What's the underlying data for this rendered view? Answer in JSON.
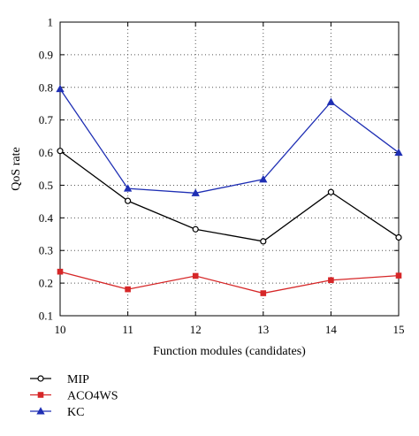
{
  "chart_data": {
    "type": "line",
    "xlabel": "Function modules (candidates)",
    "ylabel": "QoS rate",
    "x": [
      10,
      11,
      12,
      13,
      14,
      15
    ],
    "xlim": [
      10,
      15
    ],
    "ylim": [
      0.1,
      1
    ],
    "xticks": [
      "10",
      "11",
      "12",
      "13",
      "14",
      "15"
    ],
    "yticks": [
      "0.1",
      "0.2",
      "0.3",
      "0.4",
      "0.5",
      "0.6",
      "0.7",
      "0.8",
      "0.9",
      "1"
    ],
    "grid": true,
    "legend_position": "bottom-left, below plot",
    "series": [
      {
        "name": "MIP",
        "values": [
          0.605,
          0.452,
          0.365,
          0.328,
          0.479,
          0.34
        ],
        "color": "#000000",
        "marker": "circle"
      },
      {
        "name": "ACO4WS",
        "values": [
          0.235,
          0.181,
          0.222,
          0.169,
          0.209,
          0.223
        ],
        "color": "#d62728",
        "marker": "square"
      },
      {
        "name": "KC",
        "values": [
          0.795,
          0.49,
          0.476,
          0.518,
          0.755,
          0.6
        ],
        "color": "#1f2fb4",
        "marker": "triangle"
      }
    ]
  }
}
